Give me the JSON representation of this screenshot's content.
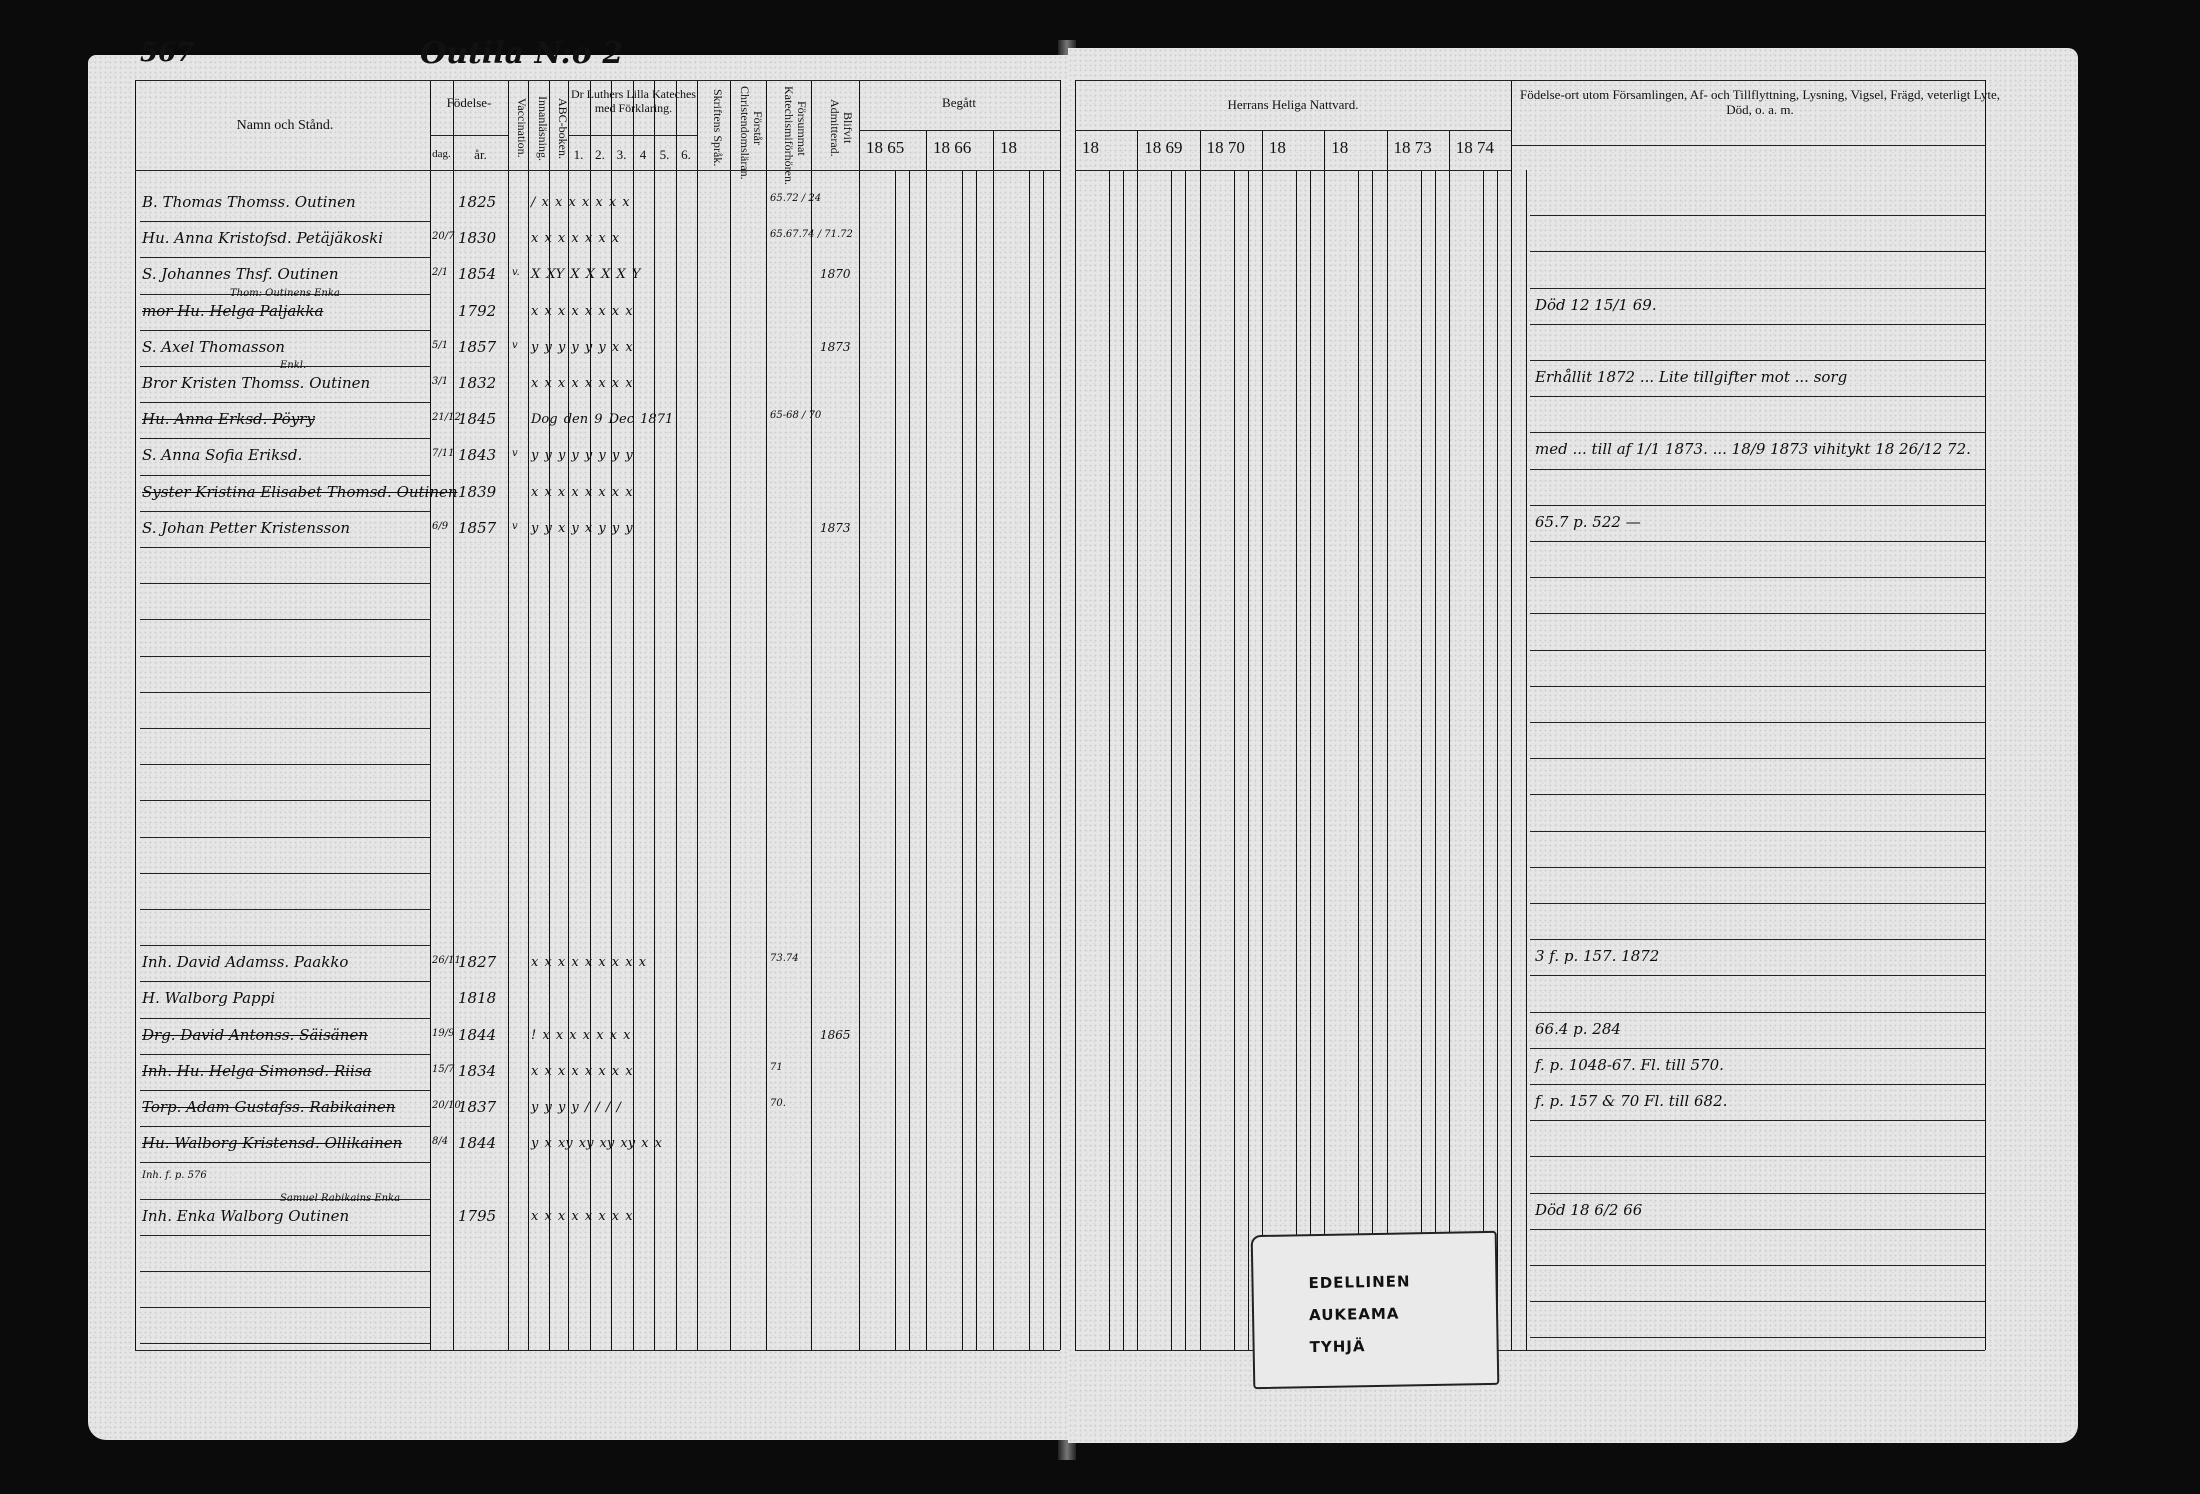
{
  "page_number": "567",
  "village_title": "Outila N:o 2",
  "left_header": {
    "name_col": "Namn och Stånd.",
    "birth": "Födelse-",
    "birth_day": "dag.",
    "birth_year": "år.",
    "vaccination": "Vaccination.",
    "reading": "Innanläsning.",
    "abc": "ABC-boken.",
    "catechism": "Dr Luthers Lilla Kateches med Förklaring.",
    "catechism_parts": [
      "1.",
      "2.",
      "3.",
      "4",
      "5.",
      "6."
    ],
    "scripture_language": "Skriftens Språk.",
    "understands": "Förstår Christendomsläran.",
    "missed": "Försummat Katechismiförhören.",
    "admitted": "Blifvit Admitterad.",
    "committed": "Begått",
    "committed_years": [
      "18 65",
      "18 66",
      "18"
    ]
  },
  "right_header": {
    "communion": "Herrans Heliga Nattvard.",
    "communion_years": [
      "18",
      "18 69",
      "18 70",
      "18",
      "18",
      "18 73",
      "18 74"
    ],
    "remarks": "Födelse-ort utom Församlingen, Af- och Tillflyttning, Lysning, Vigsel, Frägd, veterligt Lyte, Död, o. a. m."
  },
  "entries": [
    {
      "row": 0,
      "name": "B. Thomas Thomss. Outinen",
      "day": "",
      "year": "1825",
      "marks": "/  x  x  x  x  x  x  x",
      "missed": "65.72 / 24"
    },
    {
      "row": 1,
      "name": "Hu. Anna Kristofsd. Petäjäkoski",
      "day": "20/7",
      "year": "1830",
      "marks": "x  x  x  x  x  x  x",
      "missed": "65.67.74 / 71.72"
    },
    {
      "row": 2,
      "name": "S. Johannes Thsf. Outinen",
      "day": "2/1",
      "year": "1854",
      "vacc": "v.",
      "marks": "X   XY  X  X  X  X  Y",
      "admitted": "1870"
    },
    {
      "row": 3,
      "note": "Thom: Outinens Enka",
      "name": "mor Hu. Helga Paljakka",
      "strike": true,
      "day": "",
      "year": "1792",
      "marks": "x  x  x  x  x  x  x  x"
    },
    {
      "row": 4,
      "name": "S. Axel Thomasson",
      "day": "5/1",
      "year": "1857",
      "vacc": "v",
      "marks": "y  y  y  y  y  y  x  x",
      "admitted": "1873"
    },
    {
      "row": 5,
      "name": "Bror Kristen Thomss. Outinen",
      "note": "Enkl.",
      "day": "3/1",
      "year": "1832",
      "marks": "x x x x x  x  x  x"
    },
    {
      "row": 6,
      "name": "Hu. Anna Erksd. Pöyry",
      "strike": true,
      "day": "21/12",
      "year": "1845",
      "marks": "Dog den 9 Dec 1871",
      "missed": "65-68 / 70"
    },
    {
      "row": 7,
      "name": "S. Anna Sofia Eriksd.",
      "day": "7/11",
      "year": "1843",
      "vacc": "v",
      "marks": "y  y  y  y  y  y  y  y"
    },
    {
      "row": 8,
      "name": "Syster Kristina Elisabet Thomsd. Outinen",
      "strike": true,
      "day": "",
      "year": "1839",
      "marks": "x x x x x x  x  x"
    },
    {
      "row": 9,
      "name": "S. Johan Petter Kristensson",
      "day": "6/9",
      "year": "1857",
      "vacc": "v",
      "marks": "y  y  x  y  x  y  y  y",
      "admitted": "1873"
    },
    {
      "row": 21,
      "name": "Inh. David Adamss. Paakko",
      "day": "26/11",
      "year": "1827",
      "marks": "x  x  x  x  x  x  x  x  x",
      "missed": "73.74"
    },
    {
      "row": 22,
      "name": "H. Walborg Pappi",
      "day": "",
      "year": "1818",
      "marks": ""
    },
    {
      "row": 23,
      "name": "Drg. David Antonss. Säisänen",
      "strike": true,
      "day": "19/9",
      "year": "1844",
      "marks": "!  x  x  x  x  x  x  x",
      "admitted": "1865"
    },
    {
      "row": 24,
      "name": "Inh. Hu. Helga Simonsd. Riisa",
      "strike": true,
      "day": "15/7",
      "year": "1834",
      "marks": "x  x  x  x  x  x  x  x",
      "missed": "71"
    },
    {
      "row": 25,
      "name": "Torp. Adam Gustafss. Rabikainen",
      "strike": true,
      "day": "20/10",
      "year": "1837",
      "marks": "y y  y  y  /  /  /  /",
      "missed": "70."
    },
    {
      "row": 26,
      "name": "Hu. Walborg Kristensd. Ollikainen",
      "strike": true,
      "day": "8/4",
      "year": "1844",
      "marks": "y x  xy xy xy xy x  x"
    },
    {
      "row": 27,
      "name": "Inh. f. p. 576",
      "small": true
    },
    {
      "row": 28,
      "note": "Samuel Rabikains Enka",
      "name": "Inh. Enka Walborg Outinen",
      "day": "",
      "year": "1795",
      "marks": "x  x  x x  x  x  x  x"
    }
  ],
  "remarks": [
    {
      "row": 3,
      "text": "Död 12 15/1 69."
    },
    {
      "row": 5,
      "text": "Erhållit 1872 ... Lite tillgifter mot ... sorg"
    },
    {
      "row": 7,
      "text": "med ... till af 1/1 1873. ... 18/9 1873 vihitykt 18 26/12 72."
    },
    {
      "row": 9,
      "text": "65.7 p. 522 —"
    },
    {
      "row": 21,
      "text": "3 f. p. 157. 1872"
    },
    {
      "row": 23,
      "text": "66.4 p. 284"
    },
    {
      "row": 24,
      "text": "f. p. 1048-67.  Fl. till 570."
    },
    {
      "row": 25,
      "text": "f. p. 157 & 70  Fl. till 682."
    },
    {
      "row": 28,
      "text": "Död 18 6/2 66"
    }
  ],
  "stamp": {
    "lines": [
      "EDELLINEN",
      "AUKEAMA",
      "TYHJÄ"
    ]
  }
}
